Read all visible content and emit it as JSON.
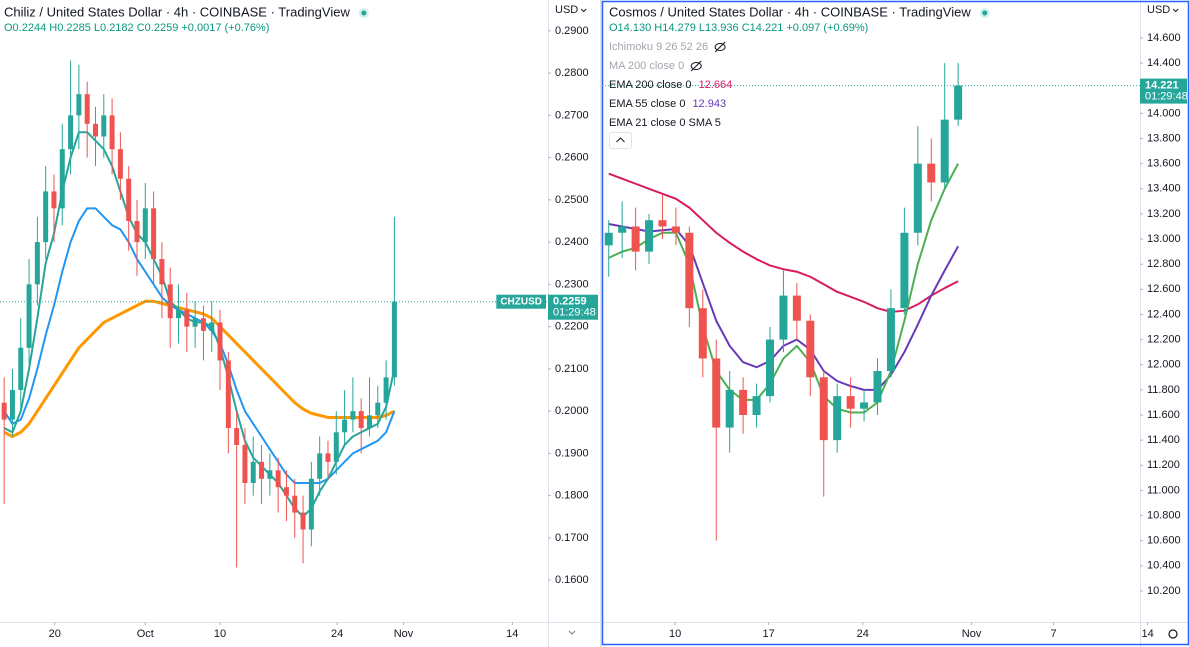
{
  "chart_data": [
    {
      "type": "candlestick",
      "title": "Chiliz / United States Dollar · 4h · COINBASE · TradingView",
      "ohlc_text": "O0.2244 H0.2285 L0.2182 C0.2259 +0.0017 (+0.76%)",
      "symbol": "CHZUSD",
      "currency": "USD",
      "last_price": {
        "value": 0.2259,
        "label": "0.2259"
      },
      "countdown": "01:29:48",
      "up_color": "#26a69a",
      "down_color": "#ef5350",
      "xlim": [
        0,
        66
      ],
      "xticks": [
        {
          "value": 6.6,
          "label": "20"
        },
        {
          "value": 17.5,
          "label": "Oct"
        },
        {
          "value": 26.5,
          "label": "10"
        },
        {
          "value": 40.6,
          "label": "24"
        },
        {
          "value": 48.6,
          "label": "Nov"
        },
        {
          "value": 61.7,
          "label": "14"
        }
      ],
      "ylim": [
        0.1501,
        0.2973
      ],
      "yticks": [
        {
          "value": 0.16,
          "label": "0.1600"
        },
        {
          "value": 0.17,
          "label": "0.1700"
        },
        {
          "value": 0.18,
          "label": "0.1800"
        },
        {
          "value": 0.19,
          "label": "0.1900"
        },
        {
          "value": 0.2,
          "label": "0.2000"
        },
        {
          "value": 0.21,
          "label": "0.2100"
        },
        {
          "value": 0.22,
          "label": "0.2200"
        },
        {
          "value": 0.23,
          "label": "0.2300"
        },
        {
          "value": 0.24,
          "label": "0.2400"
        },
        {
          "value": 0.25,
          "label": "0.2500"
        },
        {
          "value": 0.26,
          "label": "0.2600"
        },
        {
          "value": 0.27,
          "label": "0.2700"
        },
        {
          "value": 0.28,
          "label": "0.2800"
        },
        {
          "value": 0.29,
          "label": "0.2900"
        }
      ],
      "grid": false,
      "x": [
        0.5,
        1.5,
        2.5,
        3.5,
        4.5,
        5.5,
        6.5,
        7.5,
        8.5,
        9.5,
        10.5,
        11.5,
        12.5,
        13.5,
        14.5,
        15.5,
        16.5,
        17.5,
        18.5,
        19.5,
        20.5,
        21.5,
        22.5,
        23.5,
        24.5,
        25.5,
        26.5,
        27.5,
        28.5,
        29.5,
        30.5,
        31.5,
        32.5,
        33.5,
        34.5,
        35.5,
        36.5,
        37.5,
        38.5,
        39.5,
        40.5,
        41.5,
        42.5,
        43.5,
        44.5,
        45.5,
        46.5,
        47.5
      ],
      "open": [
        0.202,
        0.198,
        0.205,
        0.215,
        0.23,
        0.24,
        0.252,
        0.248,
        0.262,
        0.27,
        0.275,
        0.268,
        0.265,
        0.27,
        0.262,
        0.255,
        0.245,
        0.24,
        0.248,
        0.236,
        0.23,
        0.222,
        0.224,
        0.22,
        0.222,
        0.219,
        0.221,
        0.212,
        0.196,
        0.192,
        0.183,
        0.188,
        0.184,
        0.186,
        0.182,
        0.18,
        0.176,
        0.172,
        0.184,
        0.19,
        0.188,
        0.195,
        0.198,
        0.2,
        0.196,
        0.199,
        0.202,
        0.208
      ],
      "high": [
        0.208,
        0.21,
        0.222,
        0.236,
        0.246,
        0.258,
        0.256,
        0.268,
        0.283,
        0.282,
        0.278,
        0.272,
        0.275,
        0.274,
        0.266,
        0.258,
        0.25,
        0.254,
        0.252,
        0.24,
        0.234,
        0.23,
        0.228,
        0.226,
        0.225,
        0.226,
        0.224,
        0.214,
        0.2,
        0.196,
        0.194,
        0.192,
        0.19,
        0.189,
        0.186,
        0.184,
        0.18,
        0.188,
        0.194,
        0.193,
        0.2,
        0.205,
        0.208,
        0.203,
        0.208,
        0.206,
        0.212,
        0.246
      ],
      "low": [
        0.178,
        0.194,
        0.2,
        0.211,
        0.225,
        0.236,
        0.24,
        0.244,
        0.256,
        0.262,
        0.26,
        0.258,
        0.26,
        0.256,
        0.25,
        0.238,
        0.232,
        0.236,
        0.23,
        0.222,
        0.215,
        0.216,
        0.214,
        0.215,
        0.212,
        0.214,
        0.205,
        0.19,
        0.163,
        0.178,
        0.18,
        0.178,
        0.18,
        0.176,
        0.174,
        0.17,
        0.164,
        0.168,
        0.18,
        0.184,
        0.185,
        0.192,
        0.195,
        0.19,
        0.194,
        0.196,
        0.198,
        0.206
      ],
      "close": [
        0.198,
        0.205,
        0.215,
        0.23,
        0.24,
        0.252,
        0.248,
        0.262,
        0.27,
        0.275,
        0.268,
        0.265,
        0.27,
        0.262,
        0.255,
        0.245,
        0.24,
        0.248,
        0.236,
        0.23,
        0.222,
        0.224,
        0.22,
        0.222,
        0.219,
        0.221,
        0.212,
        0.196,
        0.192,
        0.183,
        0.188,
        0.184,
        0.186,
        0.182,
        0.18,
        0.176,
        0.172,
        0.184,
        0.19,
        0.188,
        0.195,
        0.198,
        0.2,
        0.196,
        0.199,
        0.202,
        0.208,
        0.2259
      ],
      "series": [
        {
          "color": "#ff9800",
          "values": [
            0.195,
            0.194,
            0.195,
            0.197,
            0.2,
            0.203,
            0.206,
            0.209,
            0.212,
            0.215,
            0.217,
            0.219,
            0.221,
            0.222,
            0.223,
            0.224,
            0.225,
            0.226,
            0.226,
            0.2255,
            0.225,
            0.2245,
            0.224,
            0.2235,
            0.223,
            0.222,
            0.22,
            0.218,
            0.216,
            0.214,
            0.212,
            0.21,
            0.208,
            0.206,
            0.204,
            0.202,
            0.2005,
            0.1995,
            0.199,
            0.1985,
            0.1985,
            0.1985,
            0.1985,
            0.1985,
            0.1985,
            0.1985,
            0.199,
            0.2
          ]
        },
        {
          "color": "#2196f3",
          "values": [
            0.2,
            0.197,
            0.198,
            0.203,
            0.21,
            0.218,
            0.225,
            0.233,
            0.24,
            0.245,
            0.248,
            0.248,
            0.246,
            0.244,
            0.243,
            0.24,
            0.236,
            0.233,
            0.23,
            0.227,
            0.225,
            0.224,
            0.223,
            0.222,
            0.221,
            0.219,
            0.216,
            0.211,
            0.205,
            0.2,
            0.197,
            0.194,
            0.191,
            0.188,
            0.185,
            0.183,
            0.183,
            0.183,
            0.183,
            0.184,
            0.186,
            0.188,
            0.19,
            0.191,
            0.192,
            0.193,
            0.195,
            0.2
          ]
        },
        {
          "color": "#26a69a",
          "values": [
            0.196,
            0.195,
            0.2,
            0.21,
            0.222,
            0.235,
            0.242,
            0.252,
            0.26,
            0.266,
            0.266,
            0.264,
            0.262,
            0.258,
            0.252,
            0.246,
            0.242,
            0.24,
            0.236,
            0.232,
            0.226,
            0.224,
            0.222,
            0.221,
            0.221,
            0.22,
            0.215,
            0.208,
            0.2,
            0.193,
            0.189,
            0.187,
            0.185,
            0.183,
            0.18,
            0.177,
            0.175,
            0.177,
            0.181,
            0.184,
            0.188,
            0.192,
            0.194,
            0.195,
            0.196,
            0.197,
            0.201,
            0.21
          ]
        }
      ]
    },
    {
      "type": "candlestick",
      "title": "Cosmos / United States Dollar · 4h · COINBASE · TradingView",
      "ohlc_text": "O14.130 H14.279 L13.936 C14.221 +0.097 (+0.69%)",
      "currency": "USD",
      "last_price": {
        "value": 14.221,
        "label": "14.221"
      },
      "countdown": "01:29:48",
      "up_color": "#26a69a",
      "down_color": "#ef5350",
      "hidden_indicators": [
        "Ichimoku 9 26 52 26",
        "MA 200 close 0"
      ],
      "xlim": [
        0,
        41
      ],
      "xticks": [
        {
          "value": 5.44,
          "label": "10"
        },
        {
          "value": 12.4,
          "label": "17"
        },
        {
          "value": 19.4,
          "label": "24"
        },
        {
          "value": 27.5,
          "label": "Nov"
        },
        {
          "value": 33.6,
          "label": "7"
        },
        {
          "value": 40.6,
          "label": "14"
        }
      ],
      "ylim": [
        9.953,
        14.902
      ],
      "yticks": [
        {
          "value": 10.2,
          "label": "10.200"
        },
        {
          "value": 10.4,
          "label": "10.400"
        },
        {
          "value": 10.6,
          "label": "10.600"
        },
        {
          "value": 10.8,
          "label": "10.800"
        },
        {
          "value": 11,
          "label": "11.000"
        },
        {
          "value": 11.2,
          "label": "11.200"
        },
        {
          "value": 11.4,
          "label": "11.400"
        },
        {
          "value": 11.6,
          "label": "11.600"
        },
        {
          "value": 11.8,
          "label": "11.800"
        },
        {
          "value": 12,
          "label": "12.000"
        },
        {
          "value": 12.2,
          "label": "12.200"
        },
        {
          "value": 12.4,
          "label": "12.400"
        },
        {
          "value": 12.6,
          "label": "12.600"
        },
        {
          "value": 12.8,
          "label": "12.800"
        },
        {
          "value": 13,
          "label": "13.000"
        },
        {
          "value": 13.2,
          "label": "13.200"
        },
        {
          "value": 13.4,
          "label": "13.400"
        },
        {
          "value": 13.6,
          "label": "13.600"
        },
        {
          "value": 13.8,
          "label": "13.800"
        },
        {
          "value": 14,
          "label": "14.000"
        },
        {
          "value": 14.2,
          "label": "14.200"
        },
        {
          "value": 14.4,
          "label": "14.400"
        },
        {
          "value": 14.6,
          "label": "14.600"
        }
      ],
      "grid": false,
      "x": [
        0.5,
        1.5,
        2.5,
        3.5,
        4.5,
        5.5,
        6.5,
        7.5,
        8.5,
        9.5,
        10.5,
        11.5,
        12.5,
        13.5,
        14.5,
        15.5,
        16.5,
        17.5,
        18.5,
        19.5,
        20.5,
        21.5,
        22.5,
        23.5,
        24.5,
        25.5,
        26.5
      ],
      "open": [
        12.95,
        13.05,
        13.1,
        12.9,
        13.15,
        13.1,
        13.05,
        12.45,
        12.05,
        11.5,
        11.8,
        11.6,
        11.75,
        12.2,
        12.55,
        12.35,
        11.9,
        11.4,
        11.75,
        11.65,
        11.7,
        11.95,
        12.45,
        13.05,
        13.6,
        13.45,
        13.95
      ],
      "high": [
        13.15,
        13.3,
        13.25,
        13.2,
        13.35,
        13.25,
        13.1,
        12.6,
        12.2,
        11.95,
        11.9,
        11.85,
        12.3,
        12.75,
        12.65,
        12.4,
        11.95,
        11.85,
        11.9,
        11.8,
        12.05,
        12.6,
        13.25,
        13.9,
        13.8,
        14.4,
        14.4
      ],
      "low": [
        12.7,
        12.85,
        12.75,
        12.8,
        13.0,
        12.95,
        12.3,
        11.9,
        10.6,
        11.3,
        11.45,
        11.5,
        11.7,
        12.1,
        12.2,
        11.75,
        10.95,
        11.3,
        11.5,
        11.55,
        11.6,
        11.9,
        12.4,
        12.95,
        13.3,
        13.4,
        13.9
      ],
      "close": [
        13.05,
        13.1,
        12.9,
        13.15,
        13.1,
        13.05,
        12.45,
        12.05,
        11.5,
        11.8,
        11.6,
        11.75,
        12.2,
        12.55,
        12.35,
        11.9,
        11.4,
        11.75,
        11.65,
        11.7,
        11.95,
        12.45,
        13.05,
        13.6,
        13.45,
        13.95,
        14.221
      ],
      "series": [
        {
          "name": "EMA 200 close 0",
          "color": "#d81b60",
          "values": [
            13.52,
            13.48,
            13.44,
            13.4,
            13.36,
            13.32,
            13.25,
            13.15,
            13.05,
            12.97,
            12.9,
            12.84,
            12.79,
            12.76,
            12.74,
            12.7,
            12.64,
            12.58,
            12.54,
            12.5,
            12.45,
            12.42,
            12.43,
            12.48,
            12.55,
            12.61,
            12.664
          ]
        },
        {
          "name": "EMA 55 close 0",
          "color": "#673ab7",
          "values": [
            13.12,
            13.1,
            13.08,
            13.06,
            13.07,
            13.08,
            12.95,
            12.65,
            12.35,
            12.15,
            12.02,
            11.98,
            12.03,
            12.15,
            12.2,
            12.12,
            11.95,
            11.87,
            11.83,
            11.8,
            11.8,
            11.92,
            12.1,
            12.32,
            12.55,
            12.75,
            12.943
          ]
        },
        {
          "name": "EMA 21 close 0 SMA 5",
          "color": "#4caf50",
          "values": [
            12.85,
            12.9,
            12.93,
            13.0,
            13.05,
            13.05,
            12.8,
            12.3,
            11.95,
            11.8,
            11.72,
            11.72,
            11.85,
            12.05,
            12.15,
            12.02,
            11.75,
            11.65,
            11.62,
            11.62,
            11.7,
            11.95,
            12.35,
            12.8,
            13.15,
            13.4,
            13.6
          ]
        }
      ]
    }
  ]
}
